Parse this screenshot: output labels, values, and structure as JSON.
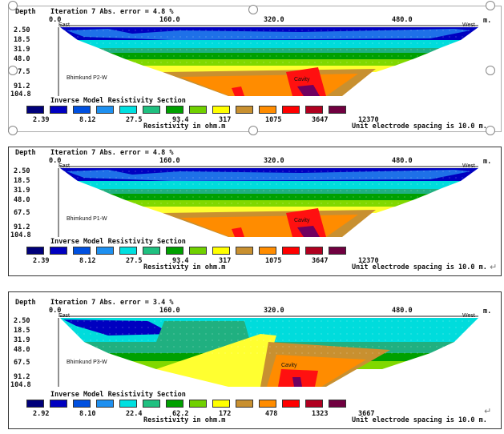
{
  "sections": [
    {
      "depth_label": "Depth",
      "iteration_label": "Iteration 7 Abs. error = 4.8 %",
      "x_ticks": [
        "0.0",
        "160.0",
        "320.0",
        "480.0"
      ],
      "east_label": "East",
      "west_label": "West",
      "unit_label": "m.",
      "depth_ticks": [
        "2.50",
        "18.5",
        "31.9",
        "48.0",
        "67.5",
        "91.2",
        "104.8"
      ],
      "profile_name": "Bhimkund P2-W",
      "cavity_label": "Cavity",
      "legend_title": "Inverse Model Resistivity Section",
      "legend_values": [
        "2.39",
        "8.12",
        "27.5",
        "93.4",
        "317",
        "1075",
        "3647",
        "12370"
      ],
      "legend_unit": "Resistivity in ohm.m",
      "spacing_label": "Unit electrode spacing is 10.0 m."
    },
    {
      "depth_label": "Depth",
      "iteration_label": "Iteration 7 Abs. error = 4.8 %",
      "x_ticks": [
        "0.0",
        "160.0",
        "320.0",
        "480.0"
      ],
      "east_label": "East",
      "west_label": "West",
      "unit_label": "m.",
      "depth_ticks": [
        "2.50",
        "18.5",
        "31.9",
        "48.0",
        "67.5",
        "91.2",
        "104.8"
      ],
      "profile_name": "Bhimkund P1-W",
      "cavity_label": "Cavity",
      "legend_title": "Inverse Model Resistivity Section",
      "legend_values": [
        "2.39",
        "8.12",
        "27.5",
        "93.4",
        "317",
        "1075",
        "3647",
        "12370"
      ],
      "legend_unit": "Resistivity in ohm.m",
      "spacing_label": "Unit electrode spacing is 10.0 m."
    },
    {
      "depth_label": "Depth",
      "iteration_label": "Iteration 7 Abs. error = 3.4 %",
      "x_ticks": [
        "0.0",
        "160.0",
        "320.0",
        "480.0"
      ],
      "east_label": "East",
      "west_label": "West",
      "unit_label": "m.",
      "depth_ticks": [
        "2.50",
        "18.5",
        "31.9",
        "48.0",
        "67.5",
        "91.2",
        "104.8"
      ],
      "profile_name": "Bhimkund P3-W",
      "cavity_label": "Cavity",
      "legend_title": "Inverse Model Resistivity Section",
      "legend_values": [
        "2.92",
        "8.10",
        "22.4",
        "62.2",
        "172",
        "478",
        "1323",
        "3667"
      ],
      "legend_unit": "Resistivity in ohm.m",
      "spacing_label": "Unit electrode spacing is 10.0 m."
    }
  ],
  "legend_colors": [
    "#00007a",
    "#0000c0",
    "#0050e0",
    "#1e90f0",
    "#00e0e0",
    "#20c080",
    "#00a000",
    "#70d000",
    "#ffff00",
    "#c89030",
    "#ff8c00",
    "#ff0000",
    "#b00020",
    "#700040"
  ],
  "layer_colors": {
    "deep_blue": "#0000c0",
    "blue": "#1e70e8",
    "cyan": "#00dcdc",
    "teal": "#20b080",
    "green": "#00a000",
    "lime": "#80d800",
    "yellow": "#ffff30",
    "brown": "#c89030",
    "orange": "#ff8c00",
    "red": "#ff1010",
    "purple": "#700060"
  }
}
